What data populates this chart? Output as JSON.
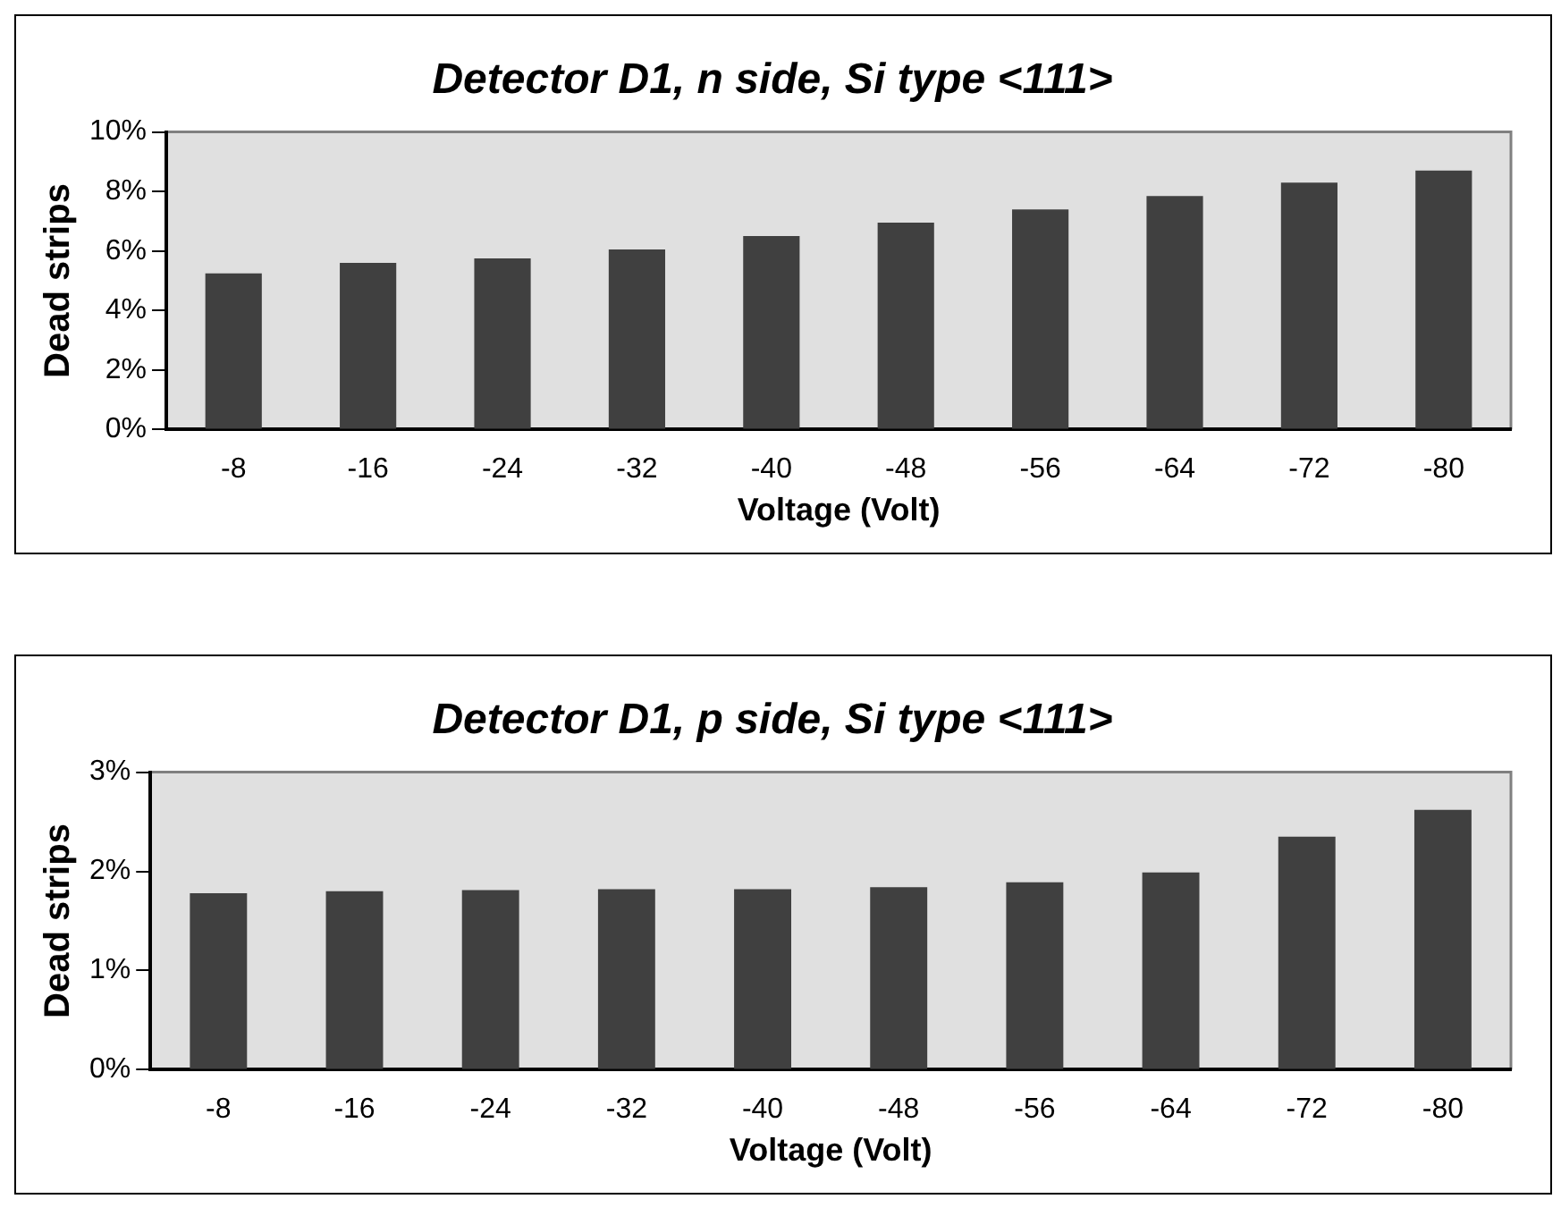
{
  "chart_data": [
    {
      "type": "bar",
      "title": "Detector D1, n side, Si type <111>",
      "xlabel": "Voltage (Volt)",
      "ylabel": "Dead strips",
      "categories": [
        "-8",
        "-16",
        "-24",
        "-32",
        "-40",
        "-48",
        "-56",
        "-64",
        "-72",
        "-80"
      ],
      "values": [
        5.25,
        5.6,
        5.75,
        6.05,
        6.5,
        6.95,
        7.4,
        7.85,
        8.3,
        8.7
      ],
      "color": "#404040",
      "ylim": [
        0,
        10
      ],
      "yticks": [
        {
          "value": 0,
          "label": "0%"
        },
        {
          "value": 2,
          "label": "2%"
        },
        {
          "value": 4,
          "label": "4%"
        },
        {
          "value": 6,
          "label": "6%"
        },
        {
          "value": 8,
          "label": "8%"
        },
        {
          "value": 10,
          "label": "10%"
        }
      ],
      "grid": false,
      "legend": false
    },
    {
      "type": "bar",
      "title": "Detector D1, p side, Si type <111>",
      "xlabel": "Voltage (Volt)",
      "ylabel": "Dead strips",
      "categories": [
        "-8",
        "-16",
        "-24",
        "-32",
        "-40",
        "-48",
        "-56",
        "-64",
        "-72",
        "-80"
      ],
      "values": [
        1.78,
        1.8,
        1.81,
        1.82,
        1.82,
        1.84,
        1.89,
        1.99,
        2.35,
        2.62
      ],
      "color": "#404040",
      "ylim": [
        0,
        3
      ],
      "yticks": [
        {
          "value": 0,
          "label": "0%"
        },
        {
          "value": 1,
          "label": "1%"
        },
        {
          "value": 2,
          "label": "2%"
        },
        {
          "value": 3,
          "label": "3%"
        }
      ],
      "grid": false,
      "legend": false
    }
  ]
}
